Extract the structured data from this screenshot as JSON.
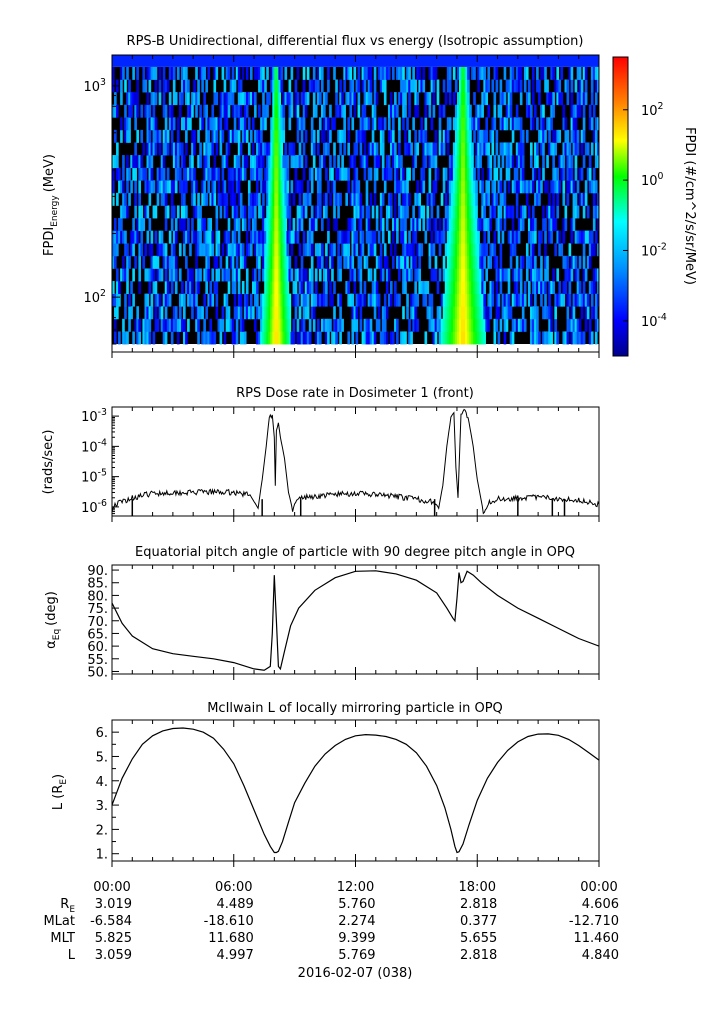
{
  "chart_data": [
    {
      "type": "heatmap",
      "title": "RPS-B  Unidirectional, differential flux vs energy (Isotropic assumption)",
      "ylabel": "FPDI",
      "ylabel_sub": "Energy",
      "ylabel_unit": "(MeV)",
      "yscale": "log",
      "ylim": [
        55,
        1400
      ],
      "yticks": [
        {
          "label": "10",
          "sup": "2",
          "value": 100
        },
        {
          "label": "10",
          "sup": "3",
          "value": 1000
        }
      ],
      "xlim_hours": [
        0,
        24
      ],
      "colorbar": {
        "label": "FPDI (#/cm^2/s/sr/MeV)",
        "log_range": [
          -5,
          3.5
        ],
        "ticks": [
          {
            "label": "10",
            "sup": "2",
            "exp": 2
          },
          {
            "label": "10",
            "sup": "0",
            "exp": 0
          },
          {
            "label": "10",
            "sup": "-2",
            "exp": -2
          },
          {
            "label": "10",
            "sup": "-4",
            "exp": -4
          }
        ]
      },
      "bands": [
        {
          "center_hour": 8.1,
          "halfwidth_top_hours": 0.15,
          "halfwidth_bottom_hours": 0.75,
          "peak_log_flux": 1.5
        },
        {
          "center_hour": 17.3,
          "halfwidth_top_hours": 0.2,
          "halfwidth_bottom_hours": 1.1,
          "peak_log_flux": 1.5
        }
      ],
      "background_log_flux_range": [
        -4.5,
        -1.5
      ],
      "top_row_log_flux": -3.6,
      "energy_rows": 22
    },
    {
      "type": "line",
      "title": "RPS  Dose rate in Dosimeter 1 (front)",
      "ylabel": "(rads/sec)",
      "yscale": "log",
      "ylim": [
        5e-07,
        0.002
      ],
      "yticks": [
        {
          "label": "10",
          "sup": "-6",
          "value": 1e-06
        },
        {
          "label": "10",
          "sup": "-5",
          "value": 1e-05
        },
        {
          "label": "10",
          "sup": "-4",
          "value": 0.0001
        },
        {
          "label": "10",
          "sup": "-3",
          "value": 0.001
        }
      ],
      "x_hours": [
        0,
        0.15,
        0.5,
        1.0,
        2.0,
        3.0,
        4.0,
        5.0,
        6.0,
        6.8,
        7.2,
        7.4,
        7.6,
        7.75,
        7.9,
        8.0,
        8.05,
        8.1,
        8.2,
        8.3,
        8.5,
        8.7,
        8.9,
        9.1,
        9.3,
        10.0,
        11.0,
        12.0,
        13.0,
        14.0,
        15.0,
        15.8,
        16.1,
        16.3,
        16.5,
        16.7,
        16.85,
        16.95,
        17.05,
        17.2,
        17.4,
        17.6,
        17.8,
        18.0,
        18.3,
        18.6,
        19.0,
        20.0,
        21.0,
        22.0,
        23.0,
        24.0
      ],
      "values": [
        8e-07,
        1.2e-06,
        1.5e-06,
        2e-06,
        2.8e-06,
        3e-06,
        3e-06,
        3.1e-06,
        3e-06,
        2.5e-06,
        9e-07,
        8e-06,
        0.0001,
        0.0009,
        0.0011,
        0.0002,
        5e-06,
        0.0004,
        0.0006,
        0.0002,
        4e-05,
        3e-06,
        8e-07,
        1.5e-06,
        2e-06,
        2.2e-06,
        2.6e-06,
        2.8e-06,
        2.5e-06,
        2.2e-06,
        1.8e-06,
        1.5e-06,
        9e-07,
        5e-06,
        0.0001,
        0.0009,
        0.0013,
        2e-05,
        2e-06,
        0.0012,
        0.0014,
        0.0006,
        0.0001,
        8e-06,
        7e-07,
        1.5e-06,
        1.8e-06,
        2e-06,
        2.1e-06,
        1.9e-06,
        1.7e-06,
        1.2e-06
      ]
    },
    {
      "type": "line",
      "title": "Equatorial pitch angle of particle with 90 degree pitch angle in OPQ",
      "ylabel": "α",
      "ylabel_sub": "Eq",
      "ylabel_unit": "(deg)",
      "ylim": [
        49,
        92
      ],
      "yticks": [
        "50.",
        "55.",
        "60.",
        "65.",
        "70.",
        "75.",
        "80.",
        "85.",
        "90."
      ],
      "x_hours": [
        0,
        0.5,
        1.0,
        2.0,
        3.0,
        4.0,
        5.0,
        6.0,
        7.0,
        7.5,
        7.8,
        7.9,
        8.0,
        8.1,
        8.2,
        8.3,
        8.5,
        8.8,
        9.2,
        10.0,
        11.0,
        12.0,
        13.0,
        14.0,
        15.0,
        16.0,
        16.5,
        16.8,
        16.9,
        17.0,
        17.1,
        17.2,
        17.3,
        17.5,
        17.8,
        18.2,
        19.0,
        20.0,
        21.0,
        22.0,
        23.0,
        24.0
      ],
      "values": [
        77,
        69,
        64,
        59,
        57,
        56,
        55,
        53.5,
        51,
        50.5,
        52,
        65,
        88,
        70,
        52,
        51,
        58,
        68,
        75,
        82,
        87,
        89.5,
        89.7,
        88.5,
        86,
        81,
        75,
        71,
        70,
        79,
        89,
        85,
        85.5,
        89.5,
        88,
        85,
        80,
        75,
        71,
        67,
        63,
        60
      ]
    },
    {
      "type": "line",
      "title": "McIlwain L of locally mirroring particle in OPQ",
      "ylabel": "L (R",
      "ylabel_sub": "E",
      "ylabel_unit": ")",
      "ylim": [
        0.7,
        6.5
      ],
      "yticks": [
        "1.",
        "2.",
        "3.",
        "4.",
        "5.",
        "6."
      ],
      "x_hours": [
        0,
        0.5,
        1.0,
        1.5,
        2.0,
        2.5,
        3.0,
        3.5,
        4.0,
        4.5,
        5.0,
        5.5,
        6.0,
        6.5,
        7.0,
        7.5,
        7.8,
        8.0,
        8.1,
        8.2,
        8.4,
        8.7,
        9.0,
        9.5,
        10.0,
        10.5,
        11.0,
        11.5,
        12.0,
        12.5,
        13.0,
        13.5,
        14.0,
        14.5,
        15.0,
        15.5,
        16.0,
        16.4,
        16.7,
        16.9,
        17.0,
        17.1,
        17.3,
        17.6,
        18.0,
        18.5,
        19.0,
        19.5,
        20.0,
        20.5,
        21.0,
        21.5,
        22.0,
        22.5,
        23.0,
        23.5,
        24.0
      ],
      "values": [
        3.0,
        4.1,
        4.9,
        5.5,
        5.85,
        6.05,
        6.15,
        6.17,
        6.12,
        6.0,
        5.75,
        5.3,
        4.7,
        3.8,
        2.8,
        1.8,
        1.3,
        1.05,
        1.05,
        1.1,
        1.5,
        2.3,
        3.1,
        3.9,
        4.6,
        5.1,
        5.45,
        5.7,
        5.85,
        5.9,
        5.88,
        5.82,
        5.7,
        5.5,
        5.15,
        4.6,
        3.8,
        2.9,
        2.0,
        1.3,
        1.05,
        1.08,
        1.4,
        2.2,
        3.2,
        4.1,
        4.75,
        5.25,
        5.6,
        5.82,
        5.92,
        5.93,
        5.87,
        5.7,
        5.45,
        5.15,
        4.85
      ]
    }
  ],
  "x_axis": {
    "tick_labels": [
      "00:00",
      "06:00",
      "12:00",
      "18:00",
      "00:00"
    ],
    "rows": [
      {
        "label": "R",
        "label_sub": "E",
        "values": [
          "3.019",
          "4.489",
          "5.760",
          "2.818",
          "4.606"
        ]
      },
      {
        "label": "MLat",
        "values": [
          "-6.584",
          "-18.610",
          "2.274",
          "0.377",
          "-12.710"
        ]
      },
      {
        "label": "MLT",
        "values": [
          "5.825",
          "11.680",
          "9.399",
          "5.655",
          "11.460"
        ]
      },
      {
        "label": "L",
        "values": [
          "3.059",
          "4.997",
          "5.769",
          "2.818",
          "4.840"
        ]
      }
    ],
    "date_label": "2016-02-07 (038)"
  }
}
